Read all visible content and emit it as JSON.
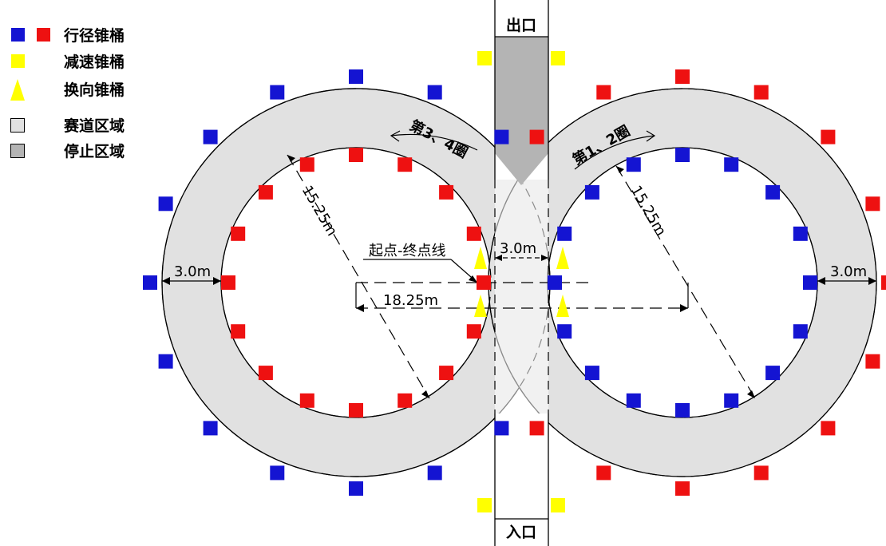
{
  "legend": [
    {
      "key": "travel",
      "label": "行径锥桶",
      "colors": [
        "#1414d2",
        "#ee1111"
      ],
      "shape": "square-pair"
    },
    {
      "key": "slow",
      "label": "减速锥桶",
      "colors": [
        "#ffff00"
      ],
      "shape": "square"
    },
    {
      "key": "turn",
      "label": "换向锥桶",
      "colors": [
        "#ffff00"
      ],
      "shape": "triangle"
    },
    {
      "key": "track",
      "label": "赛道区域",
      "colors": [
        "#e1e1e1"
      ],
      "shape": "outlined-square"
    },
    {
      "key": "stop",
      "label": "停止区域",
      "colors": [
        "#b4b4b4"
      ],
      "shape": "outlined-square"
    }
  ],
  "labels": {
    "exit": "出口",
    "entrance": "入口",
    "start_finish": "起点-终点线",
    "lap_left": "第3、4圈",
    "lap_right": "第1、2圈",
    "radius_left": "15.25m",
    "radius_right": "15.25m",
    "width_left": "3.0m",
    "width_right": "3.0m",
    "width_center": "3.0m",
    "center_distance": "18.25m"
  },
  "colors": {
    "blue_cone": "#1414d2",
    "red_cone": "#ee1111",
    "yellow_cone": "#ffff00",
    "track_fill": "#e1e1e1",
    "stop_fill": "#b4b4b4"
  }
}
